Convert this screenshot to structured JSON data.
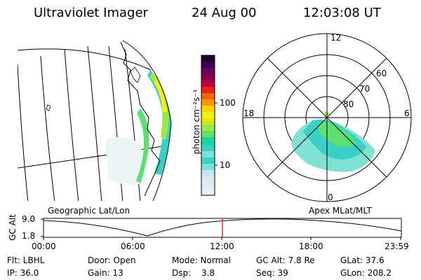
{
  "header": {
    "title": "Ultraviolet Imager",
    "date": "24 Aug 00",
    "time": "12:03:08 UT"
  },
  "colors": {
    "background": "#ffffff",
    "colorbar": [
      "#e8eef2",
      "#c6e6ee",
      "#7fe0d4",
      "#3ad0c6",
      "#1fd2a0",
      "#5ee070",
      "#9fe640",
      "#d8e818",
      "#f5f010",
      "#ffd400",
      "#ff9800",
      "#ff6000",
      "#e62020",
      "#b8003a",
      "#6a0060",
      "#20002a"
    ],
    "time_cursor": "#d00000"
  },
  "colorbar": {
    "unit": "photon cm⁻²s⁻¹",
    "ticks": [
      "100",
      "10"
    ]
  },
  "polar_plot": {
    "mlt_labels": {
      "top": "12",
      "left": "18",
      "right": "6",
      "bottom": "0"
    },
    "lat_labels": [
      "60",
      "70",
      "80"
    ]
  },
  "panel_labels": {
    "left": "Geographic Lat/Lon",
    "right": "Apex MLat/MLT"
  },
  "timeline": {
    "ylabel": "GC Alt",
    "yticks": [
      "9.0",
      "1.8"
    ],
    "xticks": [
      "00:00",
      "06:00",
      "12:00",
      "18:00",
      "23:59"
    ]
  },
  "info": {
    "filter": "Flt: LBHL",
    "door": "Door: Open",
    "mode": "Mode: Normal",
    "gc_alt": "GC Alt: 7.8 Re",
    "glat": "GLat: 37.6",
    "ip": "IP: 36.0",
    "gain": "Gain: 13",
    "dsp_label": "Dsp:",
    "dsp_value": "3.8",
    "seq": "Seq: 39",
    "glon": "GLon: 208.2"
  }
}
